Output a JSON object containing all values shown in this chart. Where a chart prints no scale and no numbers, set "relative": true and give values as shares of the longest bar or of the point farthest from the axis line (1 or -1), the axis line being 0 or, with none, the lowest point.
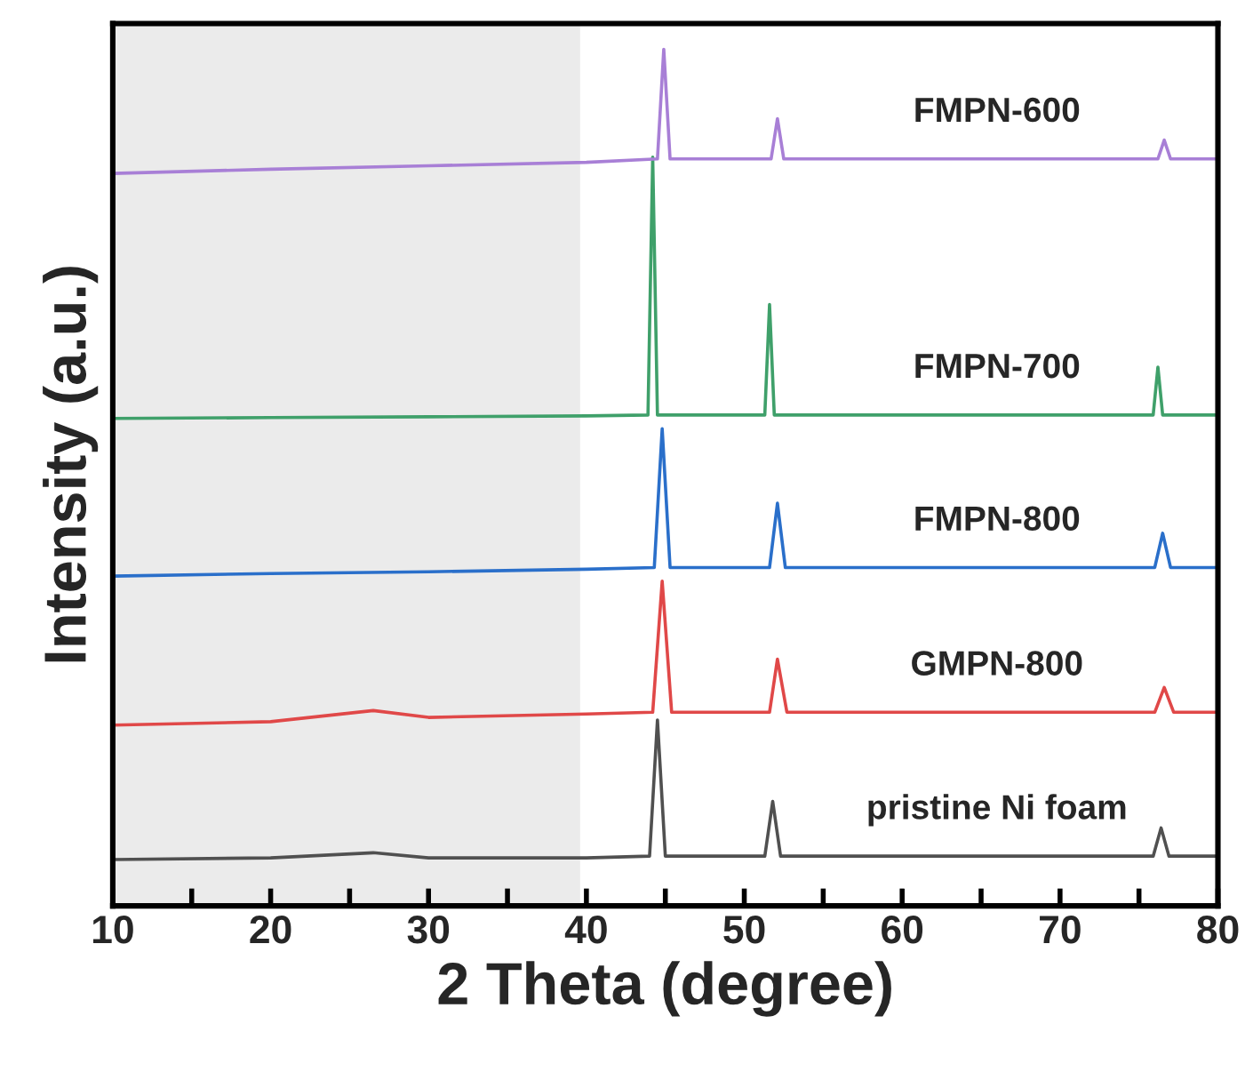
{
  "chart_data": {
    "type": "line",
    "relative": true,
    "xlabel": "2 Theta (degree)",
    "ylabel": "Intensity (a.u.)",
    "xlim": [
      10,
      80
    ],
    "xticks": [
      10,
      {
        "value": 15,
        "label": null
      },
      20,
      {
        "value": 25,
        "label": null
      },
      30,
      {
        "value": 35,
        "label": null
      },
      40,
      {
        "value": 45,
        "label": null
      },
      50,
      {
        "value": 55,
        "label": null
      },
      60,
      {
        "value": 65,
        "label": null
      },
      70,
      {
        "value": 75,
        "label": null
      },
      80
    ],
    "grid": false,
    "legend": false,
    "marker": "none",
    "line_style": "solid",
    "bands": [
      {
        "axis": "x",
        "from": 10,
        "to": 39.6,
        "color": "#ebebeb"
      }
    ],
    "series": [
      {
        "name": "pristine Ni foam",
        "color": "#505050",
        "x": [
          10,
          20,
          26.5,
          30,
          40,
          44.0,
          44.5,
          45.0,
          51.3,
          51.8,
          52.3,
          60,
          70,
          75.9,
          76.4,
          76.9,
          80
        ],
        "values": [
          0.054,
          0.056,
          0.062,
          0.056,
          0.056,
          0.058,
          0.217,
          0.058,
          0.058,
          0.122,
          0.058,
          0.058,
          0.058,
          0.058,
          0.091,
          0.058,
          0.058
        ]
      },
      {
        "name": "GMPN-800",
        "color": "#e04848",
        "x": [
          10,
          20,
          26.5,
          30,
          40,
          44.2,
          44.8,
          45.4,
          51.6,
          52.1,
          52.7,
          60,
          70,
          76.0,
          76.6,
          77.2,
          80
        ],
        "values": [
          0.211,
          0.215,
          0.228,
          0.22,
          0.224,
          0.226,
          0.379,
          0.226,
          0.226,
          0.288,
          0.226,
          0.226,
          0.226,
          0.226,
          0.255,
          0.226,
          0.226
        ]
      },
      {
        "name": "FMPN-800",
        "color": "#2a6fca",
        "x": [
          10,
          20,
          30,
          40,
          44.3,
          44.8,
          45.3,
          51.6,
          52.1,
          52.6,
          60,
          70,
          76.0,
          76.5,
          77.0,
          80
        ],
        "values": [
          0.385,
          0.388,
          0.39,
          0.393,
          0.395,
          0.557,
          0.395,
          0.395,
          0.47,
          0.395,
          0.395,
          0.395,
          0.395,
          0.435,
          0.395,
          0.395
        ]
      },
      {
        "name": "FMPN-700",
        "color": "#3fa06a",
        "x": [
          10,
          20,
          30,
          40,
          43.9,
          44.2,
          44.5,
          51.3,
          51.6,
          51.9,
          60,
          70,
          75.9,
          76.2,
          76.5,
          80
        ],
        "values": [
          0.569,
          0.57,
          0.571,
          0.572,
          0.573,
          0.874,
          0.573,
          0.573,
          0.702,
          0.573,
          0.573,
          0.573,
          0.573,
          0.629,
          0.573,
          0.573
        ]
      },
      {
        "name": "FMPN-600",
        "color": "#a87fd6",
        "x": [
          10,
          20,
          30,
          40,
          44.5,
          44.9,
          45.3,
          51.7,
          52.1,
          52.5,
          60,
          70,
          76.2,
          76.6,
          77.0,
          80
        ],
        "values": [
          0.855,
          0.86,
          0.864,
          0.868,
          0.872,
          1.0,
          0.872,
          0.872,
          0.919,
          0.872,
          0.872,
          0.872,
          0.872,
          0.894,
          0.872,
          0.872
        ]
      }
    ]
  }
}
